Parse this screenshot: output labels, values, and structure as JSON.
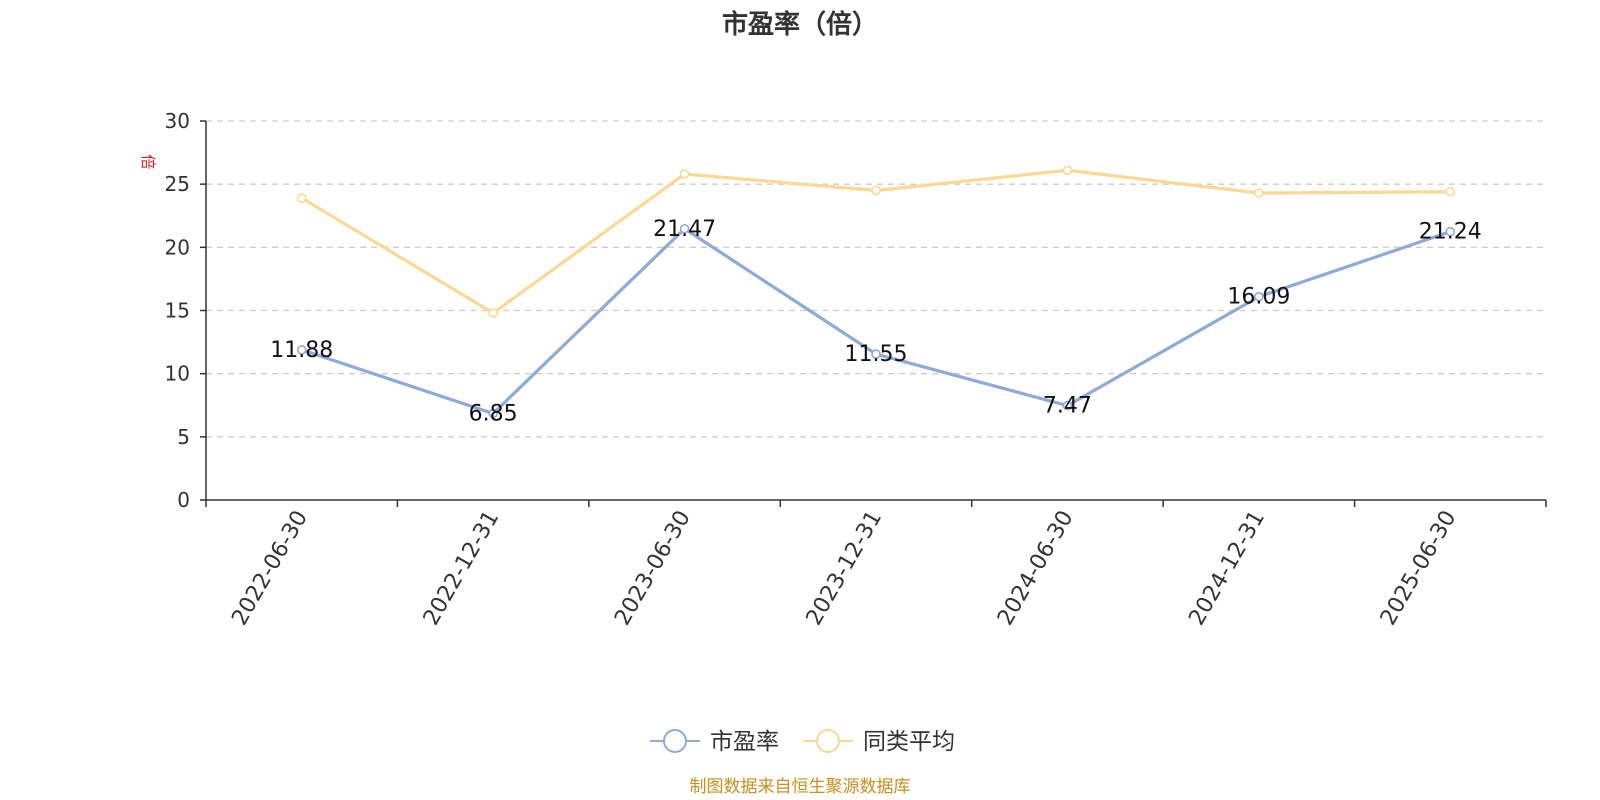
{
  "chart_data": {
    "type": "line",
    "title": "市盈率（倍）",
    "xlabel": "",
    "ylabel": "倍",
    "categories": [
      "2022-06-30",
      "2022-12-31",
      "2023-06-30",
      "2023-12-31",
      "2024-06-30",
      "2024-12-31",
      "2025-06-30"
    ],
    "ylim": [
      0,
      30
    ],
    "yticks": [
      0,
      5,
      10,
      15,
      20,
      25,
      30
    ],
    "grid": true,
    "legend_position": "bottom",
    "series": [
      {
        "name": "市盈率",
        "color": "#8eaad8",
        "values": [
          11.88,
          6.85,
          21.47,
          11.55,
          7.47,
          16.09,
          21.24
        ],
        "data_labels": [
          "11.88",
          "6.85",
          "21.47",
          "11.55",
          "7.47",
          "16.09",
          "21.24"
        ]
      },
      {
        "name": "同类平均",
        "color": "#fbd993",
        "values": [
          23.9,
          14.8,
          25.8,
          24.5,
          26.1,
          24.3,
          24.4
        ]
      }
    ]
  },
  "footer": {
    "source": "制图数据来自恒生聚源数据库"
  }
}
